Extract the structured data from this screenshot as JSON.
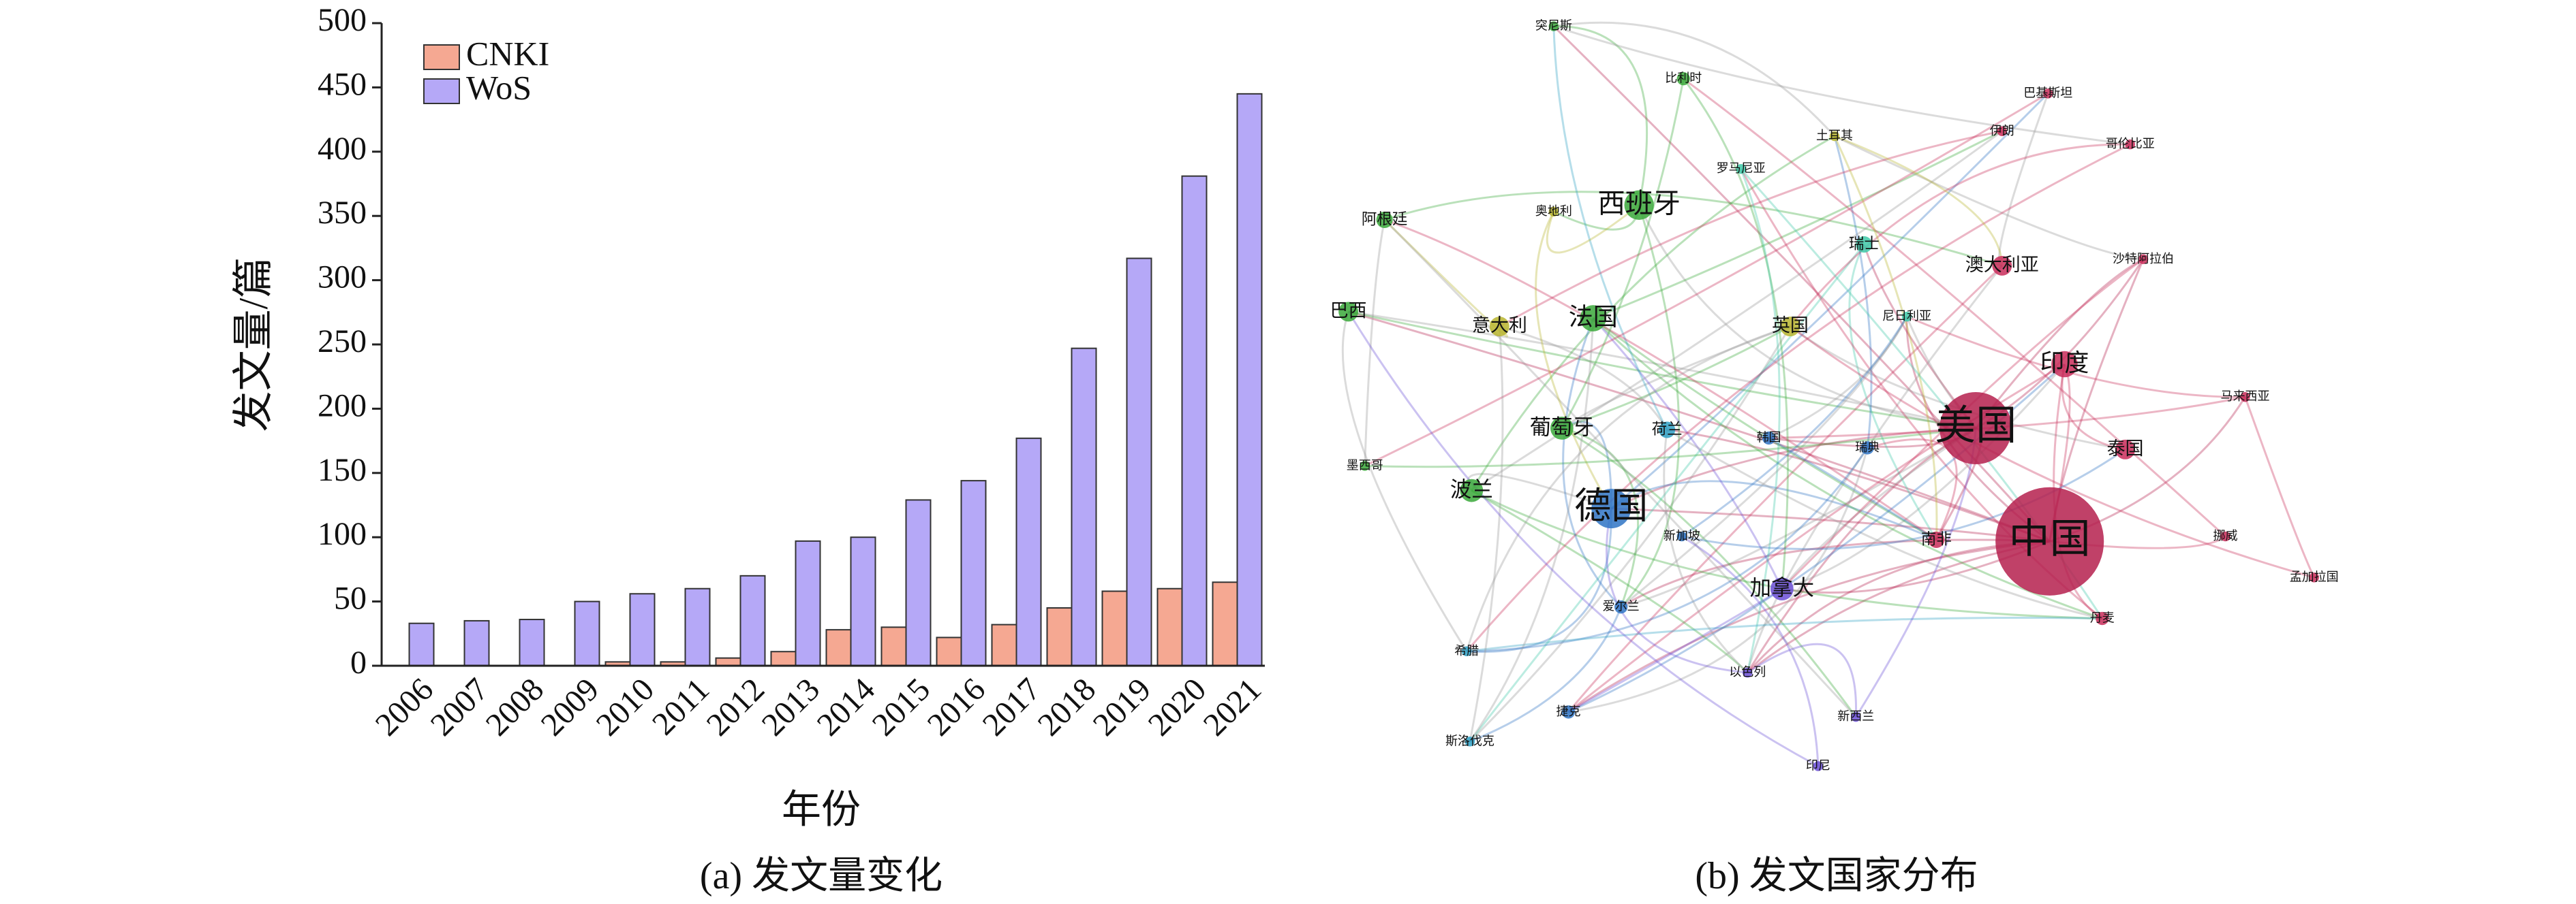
{
  "chart_data": [
    {
      "type": "bar",
      "caption": "(a) 发文量变化",
      "xlabel": "年份",
      "ylabel": "发文量/篇",
      "categories": [
        "2006",
        "2007",
        "2008",
        "2009",
        "2010",
        "2011",
        "2012",
        "2013",
        "2014",
        "2015",
        "2016",
        "2017",
        "2018",
        "2019",
        "2020",
        "2021"
      ],
      "series": [
        {
          "name": "CNKI",
          "color": "#f5a892",
          "values": [
            0,
            0,
            0,
            0,
            3,
            3,
            6,
            11,
            28,
            30,
            22,
            32,
            45,
            58,
            60,
            65
          ]
        },
        {
          "name": "WoS",
          "color": "#b5a8f7",
          "values": [
            33,
            35,
            36,
            50,
            56,
            60,
            70,
            97,
            100,
            129,
            144,
            177,
            247,
            317,
            381,
            445
          ]
        }
      ],
      "ylim": [
        0,
        500
      ],
      "yticks": [
        0,
        50,
        100,
        150,
        200,
        250,
        300,
        350,
        400,
        450,
        500
      ],
      "legend": "upper-left"
    },
    {
      "type": "network",
      "caption": "(b) 发文国家分布",
      "nodes": [
        {
          "label": "中国",
          "color": "#b5204e"
        },
        {
          "label": "美国",
          "color": "#b5204e"
        },
        {
          "label": "德国",
          "color": "#2f74c4"
        },
        {
          "label": "印度",
          "color": "#c92d5a"
        },
        {
          "label": "澳大利亚",
          "color": "#c92d5a"
        },
        {
          "label": "英国",
          "color": "#b8b52e"
        },
        {
          "label": "西班牙",
          "color": "#3aa83a"
        },
        {
          "label": "法国",
          "color": "#3aa83a"
        },
        {
          "label": "意大利",
          "color": "#b8b52e"
        },
        {
          "label": "葡萄牙",
          "color": "#3aa83a"
        },
        {
          "label": "加拿大",
          "color": "#6b4fd6"
        },
        {
          "label": "波兰",
          "color": "#3aa83a"
        },
        {
          "label": "巴西",
          "color": "#3aa83a"
        },
        {
          "label": "阿根廷",
          "color": "#3aa83a"
        },
        {
          "label": "荷兰",
          "color": "#2fa0c4"
        },
        {
          "label": "瑞士",
          "color": "#3ec9a8"
        },
        {
          "label": "泰国",
          "color": "#c92d5a"
        },
        {
          "label": "南非",
          "color": "#c92d5a"
        },
        {
          "label": "丹麦",
          "color": "#c92d5a"
        },
        {
          "label": "韩国",
          "color": "#2f74c4"
        },
        {
          "label": "瑞典",
          "color": "#2f74c4"
        },
        {
          "label": "捷克",
          "color": "#2f74c4"
        },
        {
          "label": "沙特阿拉伯",
          "color": "#c92d5a"
        },
        {
          "label": "马来西亚",
          "color": "#c92d5a"
        },
        {
          "label": "伊朗",
          "color": "#c92d5a"
        },
        {
          "label": "巴基斯坦",
          "color": "#c92d5a"
        },
        {
          "label": "哥伦比亚",
          "color": "#c92d5a"
        },
        {
          "label": "挪威",
          "color": "#c92d5a"
        },
        {
          "label": "孟加拉国",
          "color": "#c92d5a"
        },
        {
          "label": "突尼斯",
          "color": "#3aa83a"
        },
        {
          "label": "比利时",
          "color": "#3aa83a"
        },
        {
          "label": "土耳其",
          "color": "#b8b52e"
        },
        {
          "label": "罗马尼亚",
          "color": "#3ec9a8"
        },
        {
          "label": "奥地利",
          "color": "#b8b52e"
        },
        {
          "label": "尼日利亚",
          "color": "#3ec9a8"
        },
        {
          "label": "墨西哥",
          "color": "#3aa83a"
        },
        {
          "label": "新加坡",
          "color": "#2f74c4"
        },
        {
          "label": "爱尔兰",
          "color": "#2f74c4"
        },
        {
          "label": "希腊",
          "color": "#2fa0c4"
        },
        {
          "label": "以色列",
          "color": "#6b4fd6"
        },
        {
          "label": "新西兰",
          "color": "#6b4fd6"
        },
        {
          "label": "斯洛伐克",
          "color": "#2fa0c4"
        },
        {
          "label": "印尼",
          "color": "#6b4fd6"
        }
      ]
    }
  ]
}
